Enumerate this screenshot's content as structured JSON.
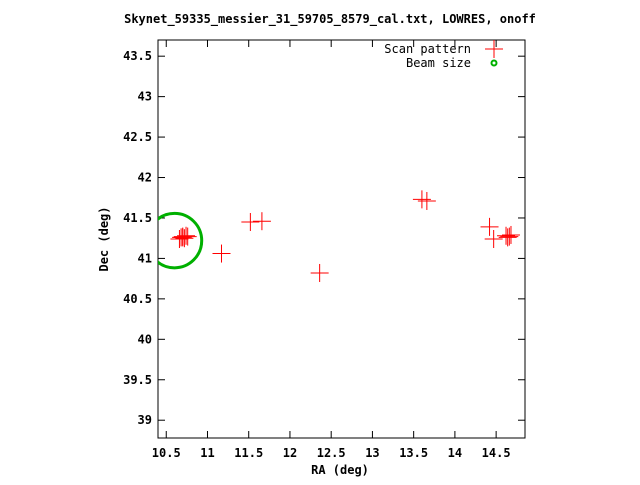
{
  "chart_data": {
    "type": "scatter",
    "title": "Skynet_59335_messier_31_59705_8579_cal.txt, LOWRES, onoff",
    "xlabel": "RA (deg)",
    "ylabel": "Dec (deg)",
    "xlim": [
      10.4,
      14.85
    ],
    "ylim": [
      38.78,
      43.7
    ],
    "x_ticks": [
      10.5,
      11,
      11.5,
      12,
      12.5,
      13,
      13.5,
      14,
      14.5
    ],
    "x_tick_labels": [
      "10.5",
      "11",
      "11.5",
      "12",
      "12.5",
      "13",
      "13.5",
      "14",
      "14.5"
    ],
    "y_ticks": [
      39,
      39.5,
      40,
      40.5,
      41,
      41.5,
      42,
      42.5,
      43,
      43.5
    ],
    "y_tick_labels": [
      "39",
      "39.5",
      "40",
      "40.5",
      "41",
      "41.5",
      "42",
      "42.5",
      "43",
      "43.5"
    ],
    "grid": false,
    "legend": {
      "placement": "top-right"
    },
    "series": [
      {
        "name": "Scan pattern",
        "marker": "plus",
        "color": "#ff0000",
        "x": [
          10.68,
          10.7,
          10.72,
          10.74,
          10.66,
          10.7,
          10.76,
          11.17,
          11.52,
          11.66,
          12.36,
          13.6,
          13.66,
          14.42,
          14.47,
          14.62,
          14.68,
          14.66,
          14.64
        ],
        "y": [
          41.26,
          41.27,
          41.25,
          41.28,
          41.24,
          41.26,
          41.27,
          41.06,
          41.45,
          41.46,
          40.82,
          41.73,
          41.71,
          41.39,
          41.24,
          41.28,
          41.29,
          41.27,
          41.26
        ]
      },
      {
        "name": "Beam size",
        "marker": "circle",
        "color": "#00b000",
        "center": [
          10.6,
          41.22
        ],
        "radius": 0.33
      }
    ]
  }
}
